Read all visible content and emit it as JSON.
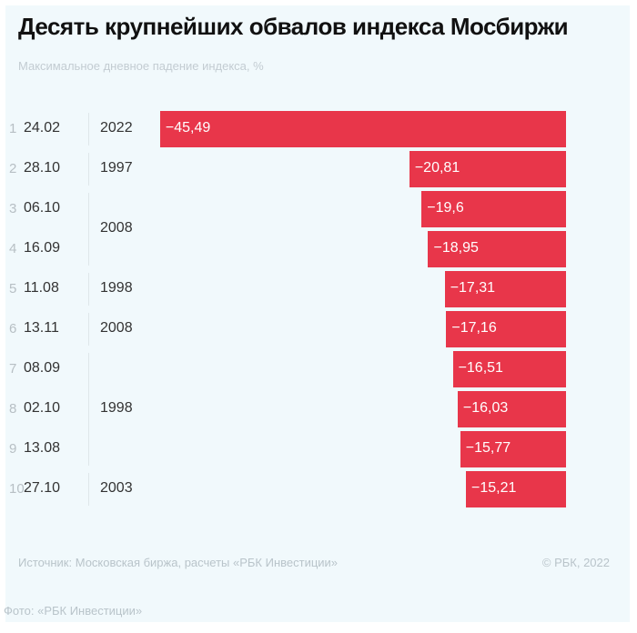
{
  "chart_data": {
    "type": "bar",
    "orientation": "horizontal",
    "title": "Десять крупнейших обвалов индекса Мосбиржи",
    "subtitle": "Максимальное дневное падение индекса, %",
    "ranks": [
      "1",
      "2",
      "3",
      "4",
      "5",
      "6",
      "7",
      "8",
      "9",
      "10"
    ],
    "categories": [
      "24.02",
      "28.10",
      "06.10",
      "16.09",
      "11.08",
      "13.11",
      "08.09",
      "02.10",
      "13.08",
      "27.10"
    ],
    "values": [
      -45.49,
      -20.81,
      -19.6,
      -18.95,
      -17.31,
      -17.16,
      -16.51,
      -16.03,
      -15.77,
      -15.21
    ],
    "value_labels": [
      "−45,49",
      "−20,81",
      "−19,6",
      "−18,95",
      "−17,31",
      "−17,16",
      "−16,51",
      "−16,03",
      "−15,77",
      "−15,21"
    ],
    "year_groups": [
      {
        "year": "2022",
        "rows": 1
      },
      {
        "year": "1997",
        "rows": 1
      },
      {
        "year": "2008",
        "rows": 2
      },
      {
        "year": "1998",
        "rows": 1
      },
      {
        "year": "2008",
        "rows": 1
      },
      {
        "year": "1998",
        "rows": 3
      },
      {
        "year": "2003",
        "rows": 1
      }
    ],
    "bar_color": "#e8364a"
  },
  "footer": {
    "source": "Источник:  Московская биржа, расчеты «РБК Инвестиции»",
    "copyright": "©  РБК, 2022",
    "photo": "Фото: «РБК Инвестиции»"
  }
}
